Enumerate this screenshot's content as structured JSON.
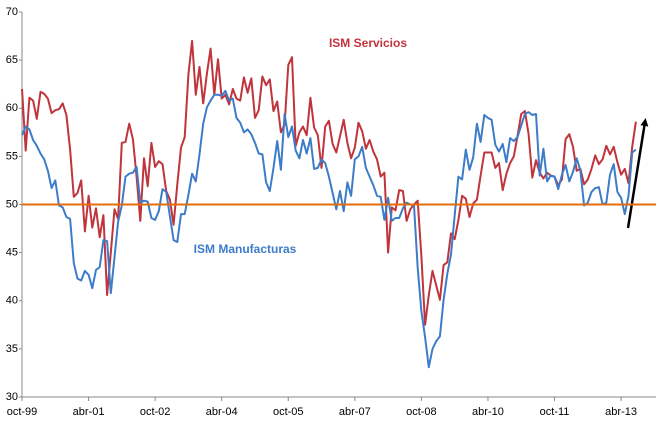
{
  "chart_data": {
    "type": "line",
    "categories": [
      "oct-99",
      null,
      null,
      null,
      null,
      null,
      null,
      null,
      null,
      null,
      null,
      null,
      null,
      null,
      null,
      null,
      null,
      null,
      "abr-01",
      null,
      null,
      null,
      null,
      null,
      null,
      null,
      null,
      null,
      null,
      null,
      null,
      null,
      null,
      null,
      null,
      null,
      "oct-02",
      null,
      null,
      null,
      null,
      null,
      null,
      null,
      null,
      null,
      null,
      null,
      null,
      null,
      null,
      null,
      null,
      null,
      "abr-04",
      null,
      null,
      null,
      null,
      null,
      null,
      null,
      null,
      null,
      null,
      null,
      null,
      null,
      null,
      null,
      null,
      null,
      "oct-05",
      null,
      null,
      null,
      null,
      null,
      null,
      null,
      null,
      null,
      null,
      null,
      null,
      null,
      null,
      null,
      null,
      null,
      "abr-07",
      null,
      null,
      null,
      null,
      null,
      null,
      null,
      null,
      null,
      null,
      null,
      null,
      null,
      null,
      null,
      null,
      null,
      "oct-08",
      null,
      null,
      null,
      null,
      null,
      null,
      null,
      null,
      null,
      null,
      null,
      null,
      null,
      null,
      null,
      null,
      null,
      "abr-10",
      null,
      null,
      null,
      null,
      null,
      null,
      null,
      null,
      null,
      null,
      null,
      null,
      null,
      null,
      null,
      null,
      null,
      "oct-11",
      null,
      null,
      null,
      null,
      null,
      null,
      null,
      null,
      null,
      null,
      null,
      null,
      null,
      null,
      null,
      null,
      null,
      "abr-13",
      null,
      null,
      null,
      null
    ],
    "series": [
      {
        "name": "ISM Servicios",
        "color": "#c0343c",
        "values": [
          62.0,
          55.6,
          61.1,
          60.8,
          58.9,
          61.7,
          61.5,
          61.0,
          59.5,
          59.8,
          59.9,
          60.5,
          59.3,
          55.7,
          50.8,
          51.2,
          52.5,
          47.2,
          50.9,
          47.6,
          49.6,
          46.6,
          48.9,
          40.6,
          45.0,
          49.5,
          48.5,
          56.4,
          56.5,
          58.4,
          56.8,
          52.9,
          48.3,
          54.8,
          51.9,
          56.4,
          53.9,
          54.5,
          54.2,
          51.4,
          50.5,
          47.9,
          52.1,
          55.9,
          57.0,
          63.5,
          67.0,
          61.4,
          64.3,
          60.5,
          63.6,
          66.2,
          61.4,
          65.1,
          61.0,
          61.4,
          60.4,
          62.0,
          61.0,
          60.8,
          63.2,
          61.6,
          63.1,
          59.0,
          59.8,
          63.3,
          62.4,
          63.0,
          59.7,
          60.7,
          57.5,
          58.3,
          64.5,
          65.3,
          56.1,
          57.5,
          58.1,
          57.2,
          61.1,
          58.0,
          57.2,
          53.8,
          58.1,
          58.7,
          56.3,
          55.4,
          57.1,
          58.8,
          56.4,
          54.8,
          55.9,
          58.5,
          57.6,
          55.8,
          56.7,
          55.5,
          54.7,
          52.9,
          53.3,
          45.0,
          49.7,
          49.4,
          51.5,
          51.4,
          48.3,
          49.5,
          50.0,
          50.4,
          44.6,
          37.5,
          40.6,
          43.1,
          41.6,
          40.1,
          43.7,
          44.0,
          47.0,
          46.4,
          48.4,
          50.9,
          50.6,
          48.7,
          50.1,
          50.5,
          53.0,
          55.4,
          55.4,
          55.4,
          53.8,
          54.3,
          51.5,
          53.2,
          54.3,
          55.0,
          57.1,
          59.4,
          59.7,
          57.3,
          52.8,
          54.6,
          53.3,
          52.7,
          53.3,
          53.0,
          52.9,
          52.0,
          52.6,
          56.8,
          57.3,
          56.0,
          53.5,
          53.7,
          52.1,
          52.6,
          53.7,
          55.1,
          54.2,
          54.7,
          56.1,
          55.2,
          56.0,
          54.4,
          53.1,
          53.7,
          52.2,
          56.0,
          58.6
        ]
      },
      {
        "name": "ISM Manufacturas",
        "color": "#3d7cc9",
        "values": [
          57.2,
          58.1,
          57.8,
          56.7,
          56.1,
          55.3,
          54.7,
          53.5,
          51.7,
          52.5,
          49.9,
          49.7,
          48.7,
          48.5,
          43.9,
          42.3,
          42.1,
          43.1,
          42.7,
          41.3,
          43.2,
          43.5,
          46.3,
          46.2,
          40.8,
          44.5,
          48.2,
          49.9,
          52.9,
          53.2,
          53.3,
          53.9,
          50.2,
          50.4,
          50.3,
          48.6,
          48.4,
          49.3,
          51.6,
          51.3,
          48.8,
          46.3,
          46.1,
          49.0,
          49.0,
          51.0,
          53.2,
          52.4,
          55.2,
          58.4,
          60.1,
          60.8,
          61.4,
          61.4,
          61.3,
          61.8,
          60.8,
          61.0,
          59.0,
          58.5,
          57.5,
          57.8,
          57.3,
          56.4,
          55.3,
          55.2,
          52.3,
          51.4,
          53.8,
          56.6,
          53.6,
          59.4,
          57.0,
          58.1,
          55.6,
          54.8,
          56.7,
          55.3,
          56.9,
          53.7,
          53.8,
          54.7,
          54.3,
          52.9,
          51.2,
          49.5,
          51.4,
          49.3,
          52.3,
          50.9,
          54.7,
          55.0,
          56.0,
          53.8,
          52.9,
          52.0,
          50.9,
          50.8,
          48.4,
          50.7,
          48.3,
          48.6,
          48.6,
          49.6,
          50.2,
          50.0,
          49.9,
          43.4,
          38.9,
          36.2,
          33.1,
          35.0,
          35.8,
          36.3,
          40.1,
          42.8,
          44.8,
          48.9,
          52.9,
          52.6,
          55.7,
          53.6,
          54.9,
          58.4,
          56.5,
          59.3,
          59.0,
          58.8,
          56.2,
          55.5,
          56.3,
          54.4,
          56.9,
          56.6,
          57.0,
          58.2,
          59.4,
          59.6,
          59.3,
          59.4,
          53.0,
          55.8,
          52.4,
          53.0,
          52.9,
          51.6,
          53.1,
          54.1,
          52.4,
          53.4,
          54.8,
          53.5,
          49.9,
          50.2,
          51.3,
          51.7,
          51.8,
          50.0,
          50.2,
          53.1,
          54.2,
          51.3,
          50.7,
          49.0,
          50.9,
          55.4,
          55.7
        ]
      }
    ],
    "hline": {
      "value": 50,
      "color": "#e46c0a"
    },
    "ylim": [
      30,
      70
    ],
    "yticks": [
      30,
      35,
      40,
      45,
      50,
      55,
      60,
      65,
      70
    ],
    "grid": false
  }
}
